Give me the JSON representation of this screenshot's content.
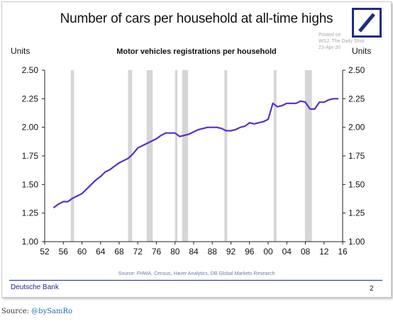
{
  "title": "Number of cars per household at all-time highs",
  "source_side": {
    "line1": "Posted on",
    "line2": "WSJ: The Daily Shot",
    "line3": "23-Apr-20"
  },
  "brand": {
    "name": "Deutsche Bank",
    "logo_icon": "deutsche-bank-slash-square-icon",
    "color": "#1e2b8a"
  },
  "page_number": "2",
  "credit": {
    "prefix": "Source: ",
    "handle": "@bySamRo"
  },
  "chart_data": {
    "type": "line",
    "title": "Motor vehicles registrations per household",
    "units_left": "Units",
    "units_right": "Units",
    "xlim": [
      1952,
      2016
    ],
    "ylim": [
      1.0,
      2.5
    ],
    "x_ticks": [
      1952,
      1956,
      1960,
      1964,
      1968,
      1972,
      1976,
      1980,
      1984,
      1988,
      1992,
      1996,
      2000,
      2004,
      2008,
      2012,
      2016
    ],
    "x_tick_labels": [
      "52",
      "56",
      "60",
      "64",
      "68",
      "72",
      "76",
      "80",
      "84",
      "88",
      "92",
      "96",
      "00",
      "04",
      "08",
      "12",
      "16"
    ],
    "y_ticks": [
      1.0,
      1.25,
      1.5,
      1.75,
      2.0,
      2.25,
      2.5
    ],
    "y_tick_labels": [
      "1.00",
      "1.25",
      "1.50",
      "1.75",
      "2.00",
      "2.25",
      "2.50"
    ],
    "line_color": "#5a2ec8",
    "recession_color": "#d6d6d6",
    "recessions": [
      [
        1957.6,
        1958.3
      ],
      [
        1969.9,
        1970.8
      ],
      [
        1973.9,
        1975.2
      ],
      [
        1980.0,
        1980.5
      ],
      [
        1981.5,
        1982.8
      ],
      [
        1990.6,
        1991.2
      ],
      [
        2001.2,
        2001.8
      ],
      [
        2007.9,
        2009.4
      ]
    ],
    "series": [
      {
        "x": [
          1954,
          1955,
          1956,
          1957,
          1958,
          1959,
          1960,
          1961,
          1962,
          1963,
          1964,
          1965,
          1966,
          1967,
          1968,
          1969,
          1970,
          1971,
          1972,
          1973,
          1974,
          1975,
          1976,
          1977,
          1978,
          1979,
          1980,
          1981,
          1982,
          1983,
          1984,
          1985,
          1986,
          1987,
          1988,
          1989,
          1990,
          1991,
          1992,
          1993,
          1994,
          1995,
          1996,
          1997,
          1998,
          1999,
          2000,
          2001,
          2002,
          2003,
          2004,
          2005,
          2006,
          2007,
          2008,
          2009,
          2010,
          2011,
          2012,
          2013,
          2014,
          2015
        ],
        "y": [
          1.3,
          1.33,
          1.35,
          1.35,
          1.38,
          1.4,
          1.42,
          1.46,
          1.5,
          1.54,
          1.57,
          1.61,
          1.63,
          1.66,
          1.69,
          1.71,
          1.73,
          1.77,
          1.82,
          1.84,
          1.86,
          1.88,
          1.9,
          1.93,
          1.95,
          1.95,
          1.95,
          1.92,
          1.93,
          1.94,
          1.96,
          1.98,
          1.99,
          2.0,
          2.0,
          2.0,
          1.99,
          1.97,
          1.97,
          1.98,
          2.0,
          2.01,
          2.04,
          2.03,
          2.04,
          2.05,
          2.07,
          2.21,
          2.18,
          2.19,
          2.21,
          2.21,
          2.21,
          2.23,
          2.22,
          2.16,
          2.16,
          2.22,
          2.22,
          2.24,
          2.25,
          2.25
        ]
      }
    ],
    "source_note": "Source: FHWA, Census, Haver Analytics, DB Global Markets Research"
  }
}
